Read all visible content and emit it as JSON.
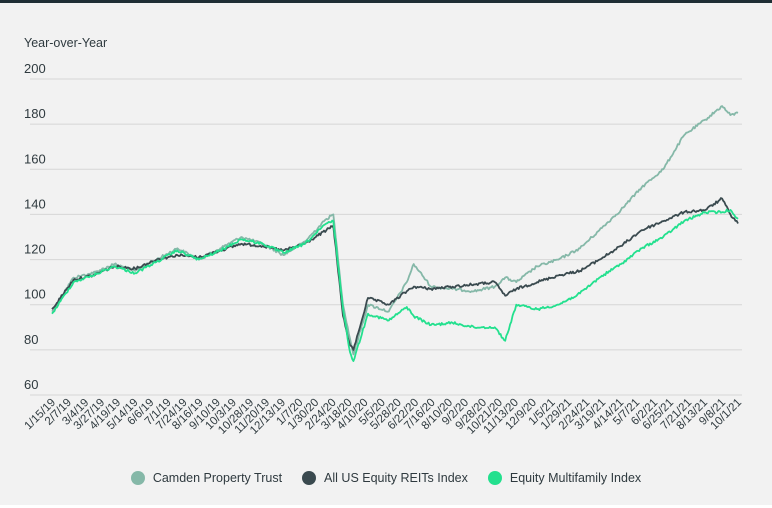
{
  "chart_data": {
    "type": "line",
    "ylabel": "Year-over-Year",
    "ylim": [
      60,
      200
    ],
    "y_ticks": [
      60,
      80,
      100,
      120,
      140,
      160,
      180,
      200
    ],
    "grid": true,
    "legend_position": "bottom",
    "x_dates": [
      "2019-01-15",
      "2019-02-15",
      "2019-03-15",
      "2019-04-15",
      "2019-05-15",
      "2019-06-15",
      "2019-07-15",
      "2019-08-15",
      "2019-09-15",
      "2019-10-15",
      "2019-11-15",
      "2019-12-15",
      "2020-01-15",
      "2020-02-15",
      "2020-02-25",
      "2020-03-10",
      "2020-03-20",
      "2020-03-25",
      "2020-04-15",
      "2020-05-15",
      "2020-06-10",
      "2020-06-20",
      "2020-07-15",
      "2020-08-15",
      "2020-09-15",
      "2020-10-15",
      "2020-10-30",
      "2020-11-15",
      "2020-12-15",
      "2021-01-15",
      "2021-02-15",
      "2021-03-15",
      "2021-04-15",
      "2021-05-15",
      "2021-06-15",
      "2021-07-15",
      "2021-08-15",
      "2021-09-08",
      "2021-09-20",
      "2021-10-01"
    ],
    "x_tick_labels": [
      "1/15/19",
      "2/7/19",
      "3/4/19",
      "3/27/19",
      "4/19/19",
      "5/14/19",
      "6/6/19",
      "7/1/19",
      "7/24/19",
      "8/16/19",
      "9/10/19",
      "10/3/19",
      "10/28/19",
      "11/20/19",
      "12/13/19",
      "1/7/20",
      "1/30/20",
      "2/24/20",
      "3/18/20",
      "4/10/20",
      "5/5/20",
      "5/28/20",
      "6/22/20",
      "7/16/20",
      "8/10/20",
      "9/2/20",
      "9/28/20",
      "10/21/20",
      "11/13/20",
      "12/9/20",
      "1/5/21",
      "1/29/21",
      "2/24/21",
      "3/19/21",
      "4/14/21",
      "5/7/21",
      "6/2/21",
      "6/25/21",
      "7/21/21",
      "8/13/21",
      "9/8/21",
      "10/1/21"
    ],
    "x_tick_dates": [
      "2019-01-15",
      "2019-02-07",
      "2019-03-04",
      "2019-03-27",
      "2019-04-19",
      "2019-05-14",
      "2019-06-06",
      "2019-07-01",
      "2019-07-24",
      "2019-08-16",
      "2019-09-10",
      "2019-10-03",
      "2019-10-28",
      "2019-11-20",
      "2019-12-13",
      "2020-01-07",
      "2020-01-30",
      "2020-02-24",
      "2020-03-18",
      "2020-04-10",
      "2020-05-05",
      "2020-05-28",
      "2020-06-22",
      "2020-07-16",
      "2020-08-10",
      "2020-09-02",
      "2020-09-28",
      "2020-10-21",
      "2020-11-13",
      "2020-12-09",
      "2021-01-05",
      "2021-01-29",
      "2021-02-24",
      "2021-03-19",
      "2021-04-14",
      "2021-05-07",
      "2021-06-02",
      "2021-06-25",
      "2021-07-21",
      "2021-08-13",
      "2021-09-08",
      "2021-10-01"
    ],
    "series": [
      {
        "name": "Camden Property Trust",
        "color": "#85b8a8",
        "values": [
          97,
          112,
          114,
          118,
          115,
          120,
          125,
          120,
          125,
          130,
          127,
          122,
          128,
          138,
          140,
          100,
          85,
          78,
          100,
          97,
          110,
          118,
          108,
          107,
          106,
          108,
          112,
          110,
          117,
          120,
          125,
          133,
          142,
          152,
          160,
          175,
          182,
          188,
          184,
          185
        ]
      },
      {
        "name": "All US Equity REITs Index",
        "color": "#3a4a4f",
        "values": [
          98,
          111,
          113,
          117,
          116,
          120,
          122,
          121,
          124,
          127,
          126,
          124,
          127,
          133,
          135,
          95,
          82,
          80,
          103,
          100,
          106,
          108,
          107,
          108,
          109,
          110,
          104,
          107,
          110,
          113,
          115,
          120,
          126,
          133,
          137,
          141,
          142,
          147,
          140,
          136
        ]
      },
      {
        "name": "Equity Multifamily Index",
        "color": "#23e08e",
        "values": [
          96,
          110,
          113,
          117,
          114,
          119,
          124,
          120,
          124,
          129,
          127,
          123,
          127,
          136,
          137,
          98,
          79,
          75,
          96,
          93,
          99,
          95,
          91,
          92,
          90,
          90,
          84,
          100,
          98,
          100,
          105,
          112,
          118,
          125,
          130,
          137,
          141,
          141,
          142,
          138
        ]
      }
    ]
  }
}
